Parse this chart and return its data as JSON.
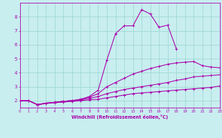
{
  "xlabel": "Windchill (Refroidissement éolien,°C)",
  "bg_color": "#c8eef0",
  "grid_color": "#a0d8d0",
  "line_color": "#aa00aa",
  "xlim": [
    0,
    23
  ],
  "ylim": [
    1.5,
    9.0
  ],
  "xticks": [
    0,
    1,
    2,
    3,
    4,
    5,
    6,
    7,
    8,
    9,
    10,
    11,
    12,
    13,
    14,
    15,
    16,
    17,
    18,
    19,
    20,
    21,
    22,
    23
  ],
  "yticks": [
    2,
    3,
    4,
    5,
    6,
    7,
    8
  ],
  "lines": [
    {
      "x": [
        0,
        1,
        2,
        3,
        4,
        5,
        6,
        7,
        8,
        9,
        10,
        11,
        12,
        13,
        14,
        15,
        16,
        17,
        18,
        19,
        20,
        21,
        22,
        23
      ],
      "y": [
        2.0,
        2.0,
        1.7,
        1.8,
        1.85,
        1.9,
        1.95,
        2.0,
        2.05,
        2.1,
        2.2,
        2.3,
        2.4,
        2.5,
        2.55,
        2.6,
        2.65,
        2.7,
        2.75,
        2.8,
        2.85,
        2.9,
        2.95,
        3.05
      ]
    },
    {
      "x": [
        0,
        1,
        2,
        3,
        4,
        5,
        6,
        7,
        8,
        9,
        10,
        11,
        12,
        13,
        14,
        15,
        16,
        17,
        18,
        19,
        20,
        21,
        22,
        23
      ],
      "y": [
        2.0,
        2.0,
        1.72,
        1.82,
        1.88,
        1.95,
        2.0,
        2.05,
        2.15,
        2.3,
        2.5,
        2.65,
        2.8,
        2.9,
        3.0,
        3.1,
        3.2,
        3.3,
        3.45,
        3.55,
        3.7,
        3.75,
        3.8,
        3.85
      ]
    },
    {
      "x": [
        0,
        1,
        2,
        3,
        4,
        5,
        6,
        7,
        8,
        9,
        10,
        11,
        12,
        13,
        14,
        15,
        16,
        17,
        18,
        19,
        20,
        21,
        22,
        23
      ],
      "y": [
        2.0,
        2.0,
        1.72,
        1.82,
        1.88,
        1.95,
        2.0,
        2.1,
        2.25,
        2.5,
        3.0,
        3.3,
        3.6,
        3.9,
        4.1,
        4.3,
        4.45,
        4.6,
        4.7,
        4.75,
        4.8,
        4.5,
        4.4,
        4.35
      ]
    },
    {
      "x": [
        0,
        1,
        2,
        3,
        4,
        5,
        6,
        7,
        8,
        9,
        10,
        11,
        12,
        13,
        14,
        15,
        16,
        17,
        18
      ],
      "y": [
        2.0,
        2.0,
        1.72,
        1.82,
        1.88,
        1.95,
        2.0,
        2.1,
        2.3,
        2.75,
        4.9,
        6.8,
        7.35,
        7.35,
        8.5,
        8.2,
        7.25,
        7.4,
        5.7
      ]
    }
  ]
}
